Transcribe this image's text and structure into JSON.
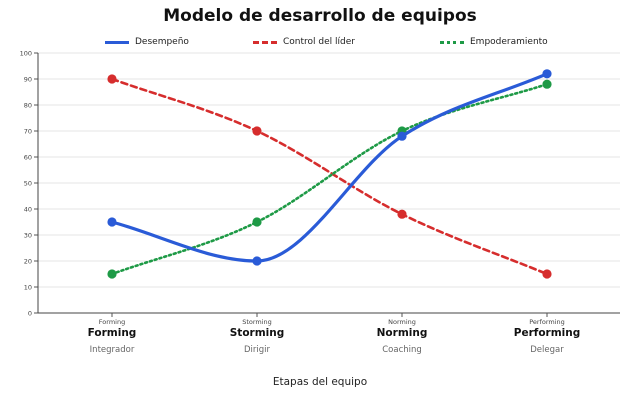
{
  "chart_data": {
    "type": "line",
    "title": "Modelo de desarrollo de equipos",
    "xlabel": "Etapas del equipo",
    "ylabel": "",
    "ylim": [
      0,
      100
    ],
    "yticks": [
      0,
      10,
      20,
      30,
      40,
      50,
      60,
      70,
      80,
      90,
      100
    ],
    "grid": true,
    "legend_position": "top",
    "categories": [
      "Forming",
      "Storming",
      "Norming",
      "Performing"
    ],
    "category_titles": [
      "Forming",
      "Storming",
      "Norming",
      "Performing"
    ],
    "category_subtitles": [
      "Integrador",
      "Dirigir",
      "Coaching",
      "Delegar"
    ],
    "series": [
      {
        "name": "Desempeño",
        "values": [
          35,
          20,
          68,
          92
        ],
        "color": "#2a5bd7",
        "style": "solid"
      },
      {
        "name": "Control del líder",
        "values": [
          90,
          70,
          38,
          15
        ],
        "color": "#d62d2d",
        "style": "dashed"
      },
      {
        "name": "Empoderamiento",
        "values": [
          15,
          35,
          70,
          88
        ],
        "color": "#1e9a46",
        "style": "dotted"
      }
    ]
  }
}
